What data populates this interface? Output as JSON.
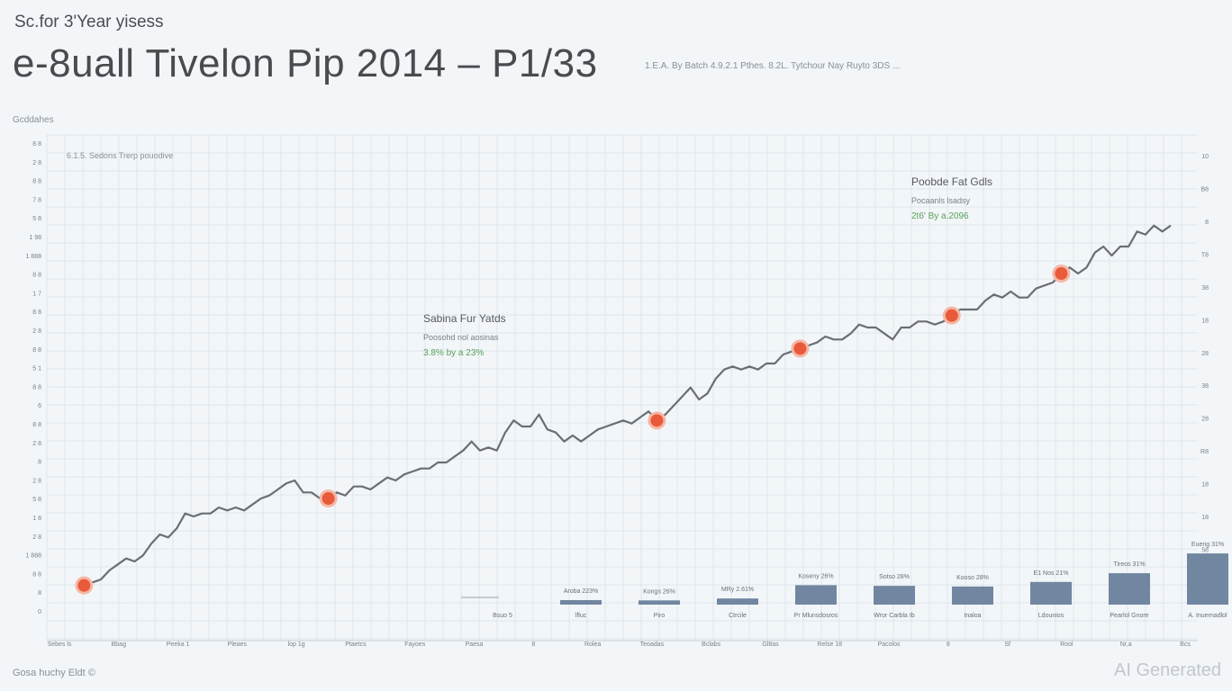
{
  "header": {
    "kicker": "Sc.for 3'Year yisess",
    "title": "e-8uall Tivelon Pip 2014 – P1/33",
    "note": "1.E.A. By Batch 4.9.2.1 Pthes. 8.2L. Tytchour Nay Ruyto 3DS ..."
  },
  "axis_label_left": "Gcddahes",
  "plot_note": "6.1.5. Sedons Trerp pouodive",
  "footer_note": "Gosa huchy Eldt ©",
  "watermark": "AI Generated",
  "colors": {
    "background": "#f2f6f9",
    "grid": "#dde6ec",
    "line": "#6b6e73",
    "marker": "#e85a3a",
    "marker_ring": "#f5b7a6",
    "bar": "#7186a0",
    "annotation_pct": "#5aa05a"
  },
  "chart_data": {
    "type": "line",
    "title": "e-8uall Tivelon Pip 2014 – P1/33",
    "ylim": [
      0,
      100
    ],
    "grid": true,
    "series": [
      {
        "values": [
          4,
          4,
          5,
          6,
          9,
          11,
          13,
          12,
          14,
          18,
          21,
          20,
          23,
          28,
          27,
          28,
          28,
          30,
          29,
          30,
          29,
          31,
          33,
          34,
          36,
          38,
          39,
          35,
          35,
          33,
          33,
          35,
          34,
          37,
          37,
          36,
          38,
          40,
          39,
          41,
          42,
          43,
          43,
          45,
          45,
          47,
          49,
          52,
          49,
          50,
          49,
          55,
          59,
          57,
          57,
          61,
          56,
          55,
          52,
          54,
          52,
          54,
          56,
          57,
          58,
          59,
          58,
          60,
          62,
          59,
          61,
          64,
          67,
          70,
          66,
          68,
          73,
          76,
          77,
          76,
          77,
          76,
          78,
          78,
          81,
          82,
          83,
          84,
          85,
          87,
          86,
          86,
          88,
          91,
          90,
          90,
          88,
          86,
          90,
          90,
          92,
          92,
          91,
          92,
          94,
          96,
          96,
          96,
          99,
          101,
          100,
          102,
          100,
          100,
          103,
          104,
          105,
          108,
          110,
          108,
          110,
          115,
          117,
          114,
          117,
          117,
          122,
          121,
          124,
          122,
          124
        ]
      }
    ],
    "markers": [
      {
        "index": 1,
        "label": ""
      },
      {
        "index": 30,
        "label": ""
      },
      {
        "index": 69,
        "label": ""
      },
      {
        "index": 86,
        "label": ""
      },
      {
        "index": 104,
        "label": ""
      },
      {
        "index": 117,
        "label": ""
      }
    ],
    "annotations": [
      {
        "title": "Sabina Fur Yatds",
        "line1": "Poosohd nol aosinas",
        "pct": "3.8% by a 23%",
        "x_index": 69
      },
      {
        "title": "Poobde Fat Gdls",
        "line1": "Pocaanls lsadsy",
        "pct": "2t6' By a.2096",
        "x_index": 122
      }
    ],
    "bars": {
      "categories": [
        "Bsuo 5",
        "lfluc",
        "Piro",
        "Ctrcile",
        "Pr Mlunsdosros",
        "Wror Carbla Ib",
        "Inaloa",
        "Ldounios",
        "Pearlol Gnore",
        "A. Inuernadlol"
      ],
      "values": [
        2,
        14,
        13,
        19,
        60,
        58,
        56,
        70,
        97,
        158
      ],
      "labels": [
        "",
        "Aroba 223%",
        "Kongs 26%",
        "MRy 2.61%",
        "Koseny 26%",
        "Sotso 28%",
        "Kooso 28%",
        "E1 Nos 21%",
        "Tireos 31%",
        "Eueng 31%"
      ]
    },
    "y_tick_labels_left": [
      "8 8",
      "2 8",
      "8 8",
      "7 8",
      "5 8",
      "1 98",
      "1 888",
      "8 8",
      "1 7",
      "8 8",
      "2 8",
      "8 8",
      "5 1",
      "8 8",
      "6",
      "8 8",
      "2 8",
      "8",
      "2 8",
      "5 8",
      "1 8",
      "2 8",
      "1 888",
      "8 8",
      "8",
      "0"
    ],
    "y_tick_labels_right": [
      "10",
      "B8",
      "8",
      "T8",
      "38",
      "18",
      "28",
      "38",
      "28",
      "R8",
      "18",
      "18",
      "58",
      "88"
    ],
    "x_tick_labels": [
      "Sebes ls",
      "Bbag",
      "Peeka 1",
      "Pleaes",
      "lop 1g",
      "Ptaetcs",
      "Fayoes",
      "Paesa",
      "8",
      "Rolea",
      "Teoadas",
      "Bclabs",
      "Gl8as",
      "Relse 18",
      "Pacolos",
      "8",
      "Sf",
      "Rool",
      "Nr,a",
      "Bcs"
    ]
  }
}
